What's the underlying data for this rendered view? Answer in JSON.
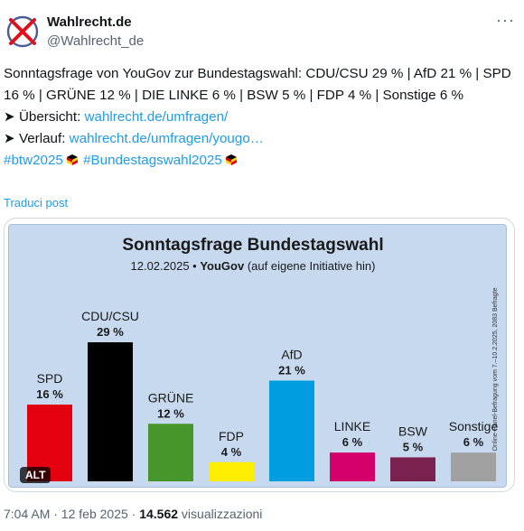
{
  "account": {
    "name": "Wahlrecht.de",
    "handle": "@Wahlrecht_de"
  },
  "more_label": "···",
  "post": {
    "line1": "Sonntagsfrage von YouGov zur Bundestagswahl: CDU/CSU 29 % | AfD 21 % | SPD 16 % | GRÜNE 12 % | DIE LINKE 6 % | BSW 5 % | FDP 4 % | Sonstige 6 %",
    "overview_prefix": "➤ Übersicht: ",
    "overview_link": "wahlrecht.de/umfragen/",
    "trend_prefix": "➤ Verlauf: ",
    "trend_link": "wahlrecht.de/umfragen/yougo…",
    "hashtag1": "#btw2025",
    "hashtag2": "#Bundestagswahl2025"
  },
  "translate_label": "Traduci post",
  "alt_label": "ALT",
  "footer": {
    "time": "7:04 AM · 12 feb 2025 · ",
    "views": "14.562",
    "views_label": " visualizzazioni"
  },
  "colors": {
    "link": "#1d9bf0",
    "chart_bg": "#c7d9ee"
  },
  "chart_data": {
    "type": "bar",
    "title": "Sonntagsfrage Bundestagswahl",
    "subtitle_date": "12.02.2025 • ",
    "subtitle_source": "YouGov",
    "subtitle_note": " (auf eigene Initiative hin)",
    "side_note": "Online-Panel-Befragung vom 7.–10.2.2025, 2083 Befragte",
    "categories": [
      "SPD",
      "CDU/CSU",
      "GRÜNE",
      "FDP",
      "AfD",
      "LINKE",
      "BSW",
      "Sonstige"
    ],
    "values": [
      16,
      29,
      12,
      4,
      21,
      6,
      5,
      6
    ],
    "value_labels": [
      "16 %",
      "29 %",
      "12 %",
      "4 %",
      "21 %",
      "6 %",
      "5 %",
      "6 %"
    ],
    "colors": [
      "#e3000f",
      "#000000",
      "#46962b",
      "#ffed00",
      "#009ee0",
      "#d6006b",
      "#7b2150",
      "#a0a0a0"
    ],
    "ylim": [
      0,
      29
    ]
  }
}
